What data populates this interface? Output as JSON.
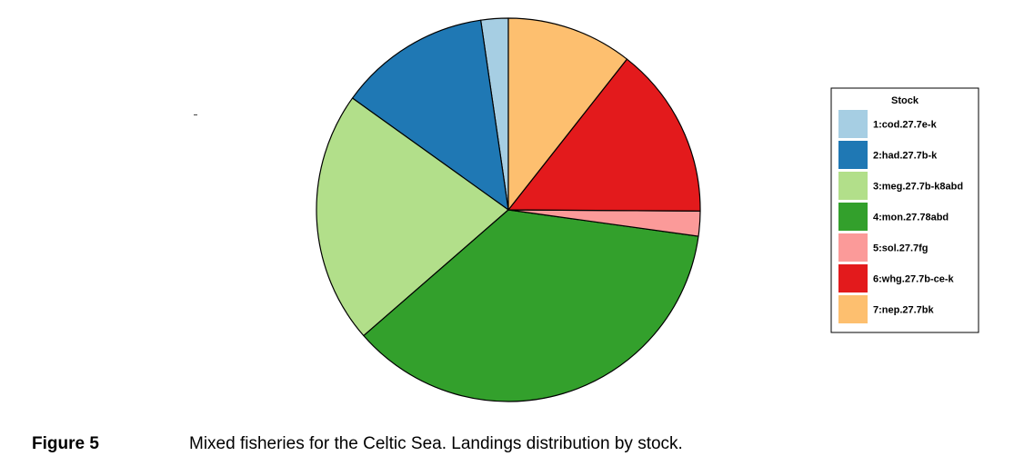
{
  "chart_data": {
    "type": "pie",
    "legend_title": "Stock",
    "legend_position": "right",
    "start_angle": "12 o'clock",
    "direction": "counterclockwise",
    "slices": [
      {
        "label": "1:cod.27.7e-k",
        "value": 2.3,
        "color": "#a6cee3"
      },
      {
        "label": "2:had.27.7b-k",
        "value": 12.8,
        "color": "#1f78b4"
      },
      {
        "label": "3:meg.27.7b-k8abd",
        "value": 21.3,
        "color": "#b2df8a"
      },
      {
        "label": "4:mon.27.78abd",
        "value": 36.4,
        "color": "#33a02c"
      },
      {
        "label": "5:sol.27.7fg",
        "value": 2.1,
        "color": "#fb9a99"
      },
      {
        "label": "6:whg.27.7b-ce-k",
        "value": 14.5,
        "color": "#e31a1c"
      },
      {
        "label": "7:nep.27.7bk",
        "value": 10.6,
        "color": "#fdbf6f"
      }
    ]
  },
  "caption": {
    "label": "Figure 5",
    "text": "Mixed fisheries for the Celtic Sea. Landings distribution by stock."
  }
}
